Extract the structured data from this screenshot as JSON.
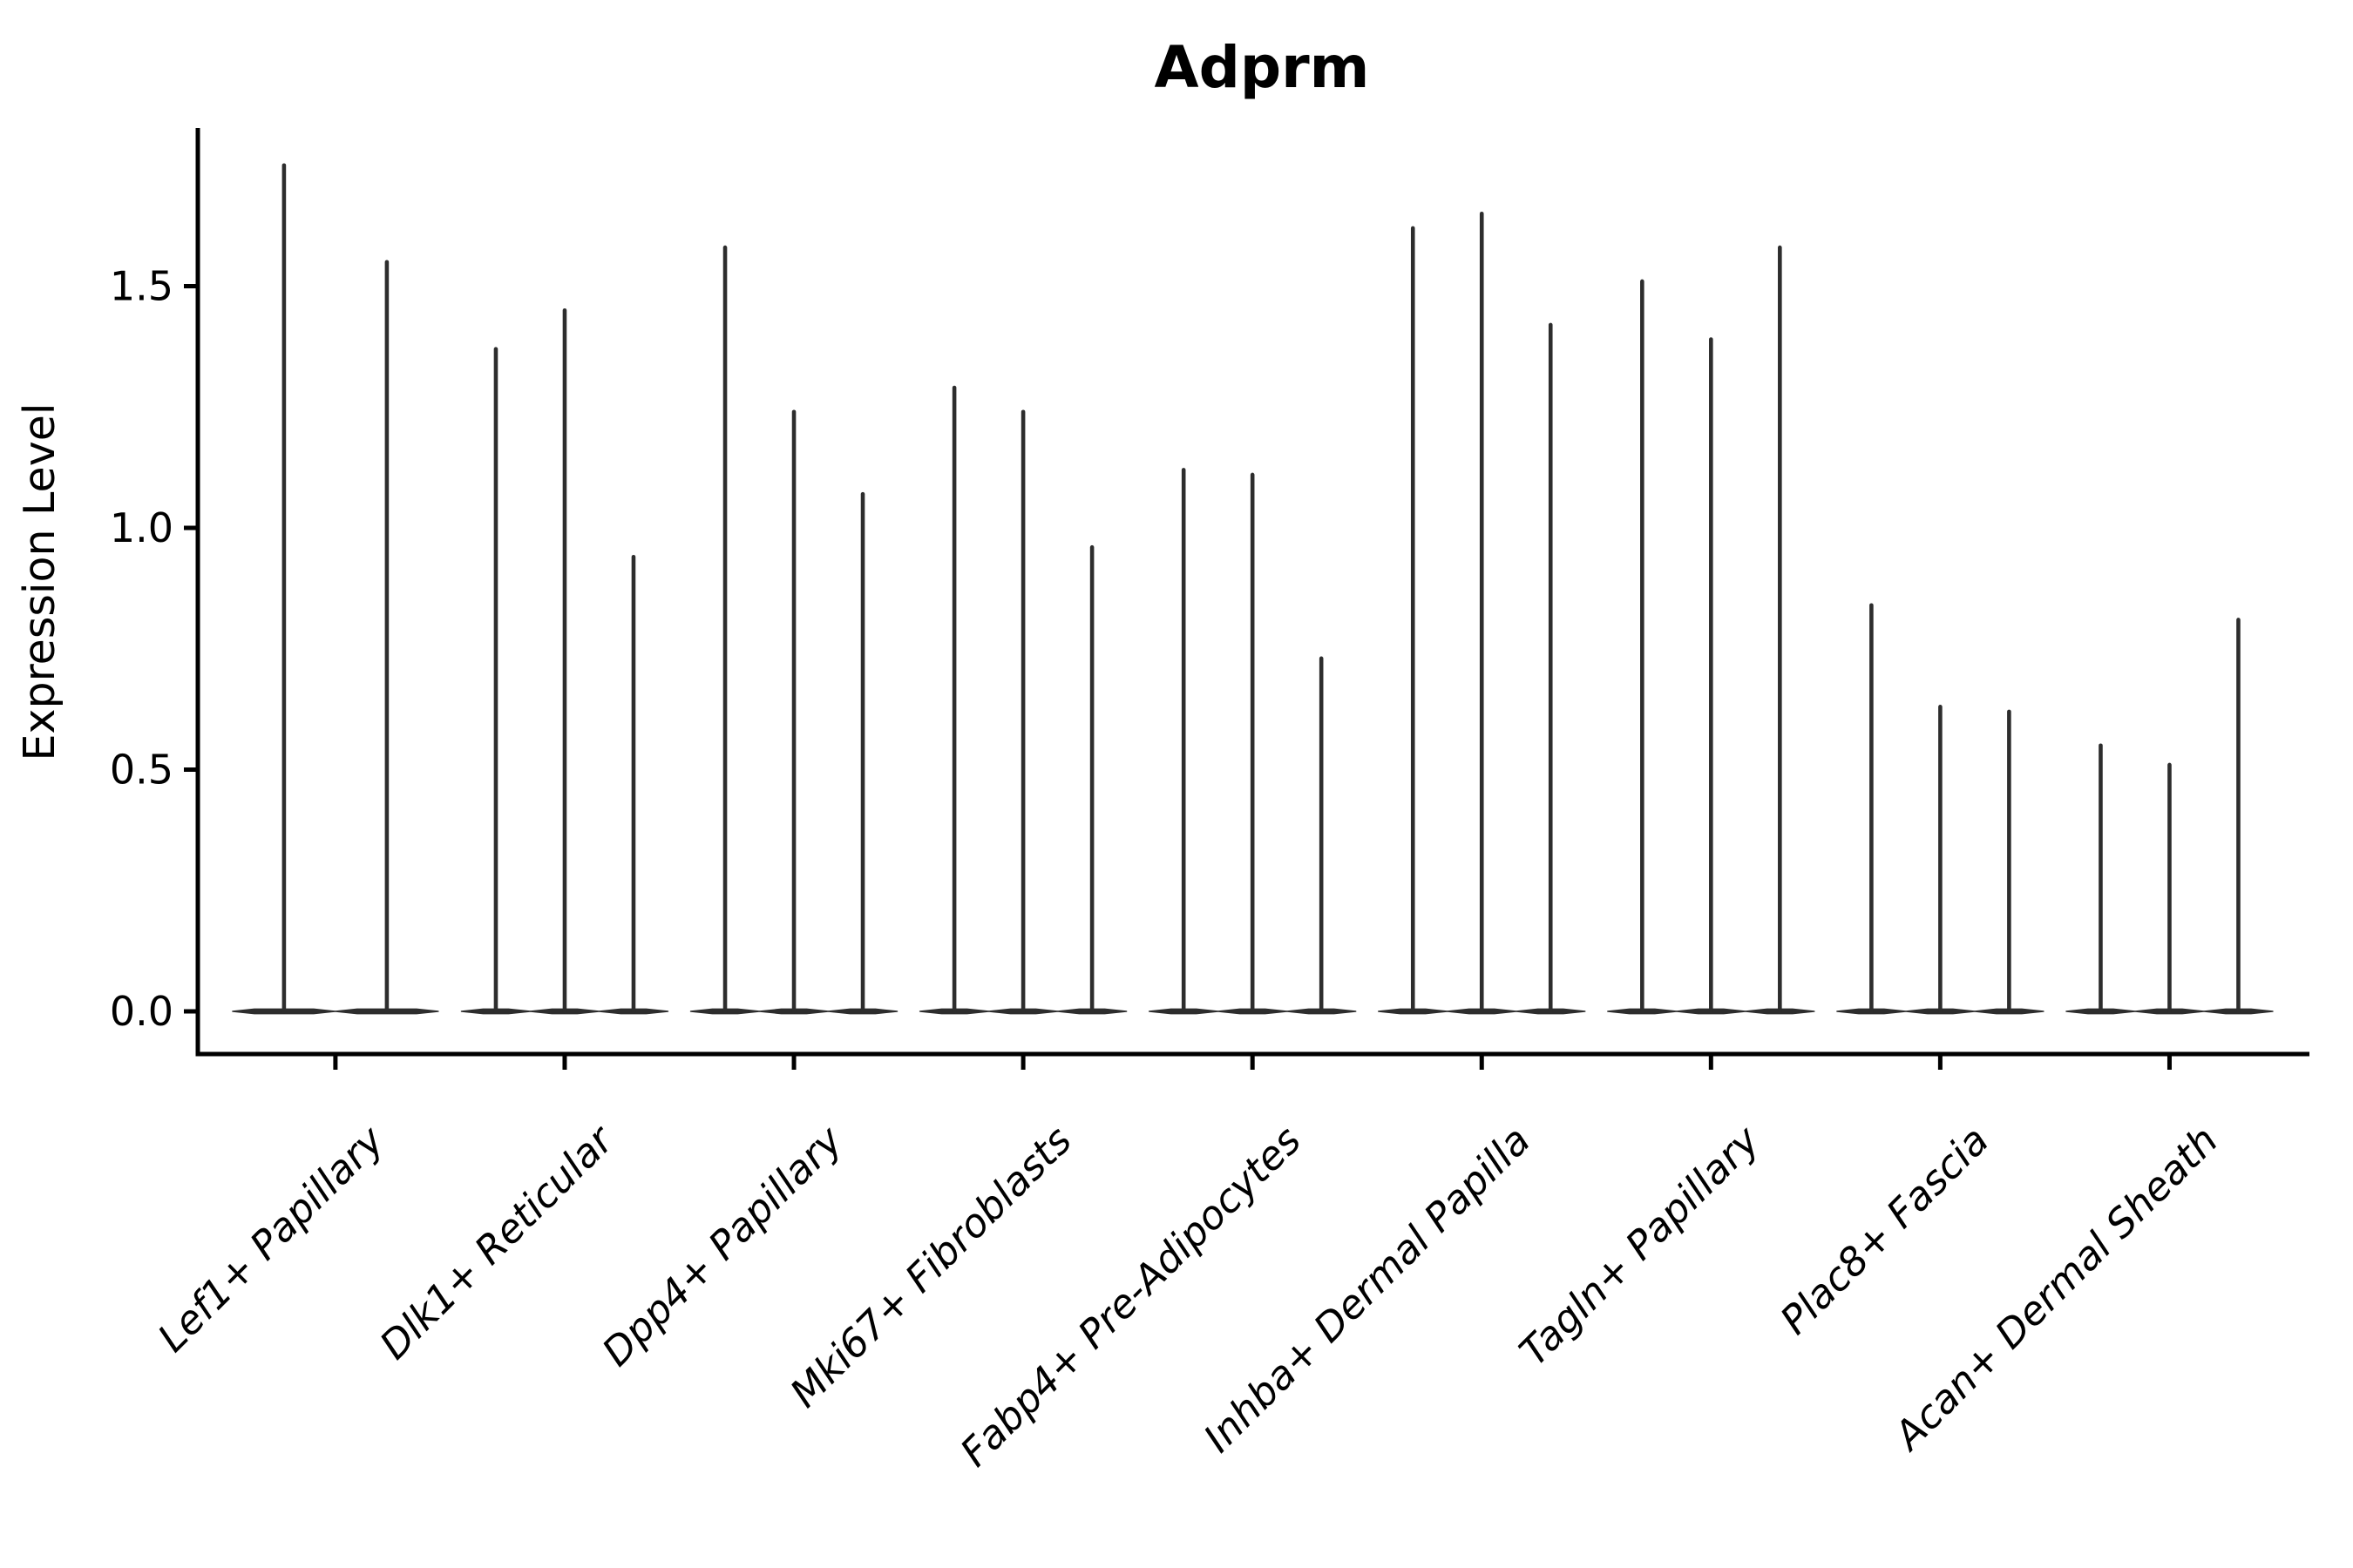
{
  "chart_data": {
    "type": "violin",
    "title": "Adprm",
    "ylabel": "Expression Level",
    "xlabel": "",
    "ytick_labels": [
      "0.0",
      "0.5",
      "1.0",
      "1.5"
    ],
    "ytick_values": [
      0.0,
      0.5,
      1.0,
      1.5
    ],
    "ylim": [
      -0.09,
      1.83
    ],
    "grid": false,
    "legend": "none",
    "categories": [
      "Lef1+ Papillary",
      "Dlk1+ Reticular",
      "Dpp4+ Papillary",
      "Mki67+ Fibroblasts",
      "Fabp4+ Pre-Adipocytes",
      "Inhba+ Dermal Papilla",
      "Tagln+ Papillary",
      "Plac8+ Fascia",
      "Acan+ Dermal Sheath"
    ],
    "violin_max_expression": [
      [
        1.75,
        1.55
      ],
      [
        1.37,
        1.45,
        0.94
      ],
      [
        1.58,
        1.24,
        1.07
      ],
      [
        1.29,
        1.24,
        0.96
      ],
      [
        1.12,
        1.11,
        0.73
      ],
      [
        1.62,
        1.65,
        1.42
      ],
      [
        1.51,
        1.39,
        1.58
      ],
      [
        0.84,
        0.63,
        0.62
      ],
      [
        0.55,
        0.51,
        0.81
      ]
    ],
    "violin_shape_note": "very narrow violins: dense mass at 0 (flat base) with a thin spike up to the max value",
    "colors": {
      "ink": "#2d2d2d",
      "axis": "#000000",
      "background": "#ffffff"
    }
  }
}
